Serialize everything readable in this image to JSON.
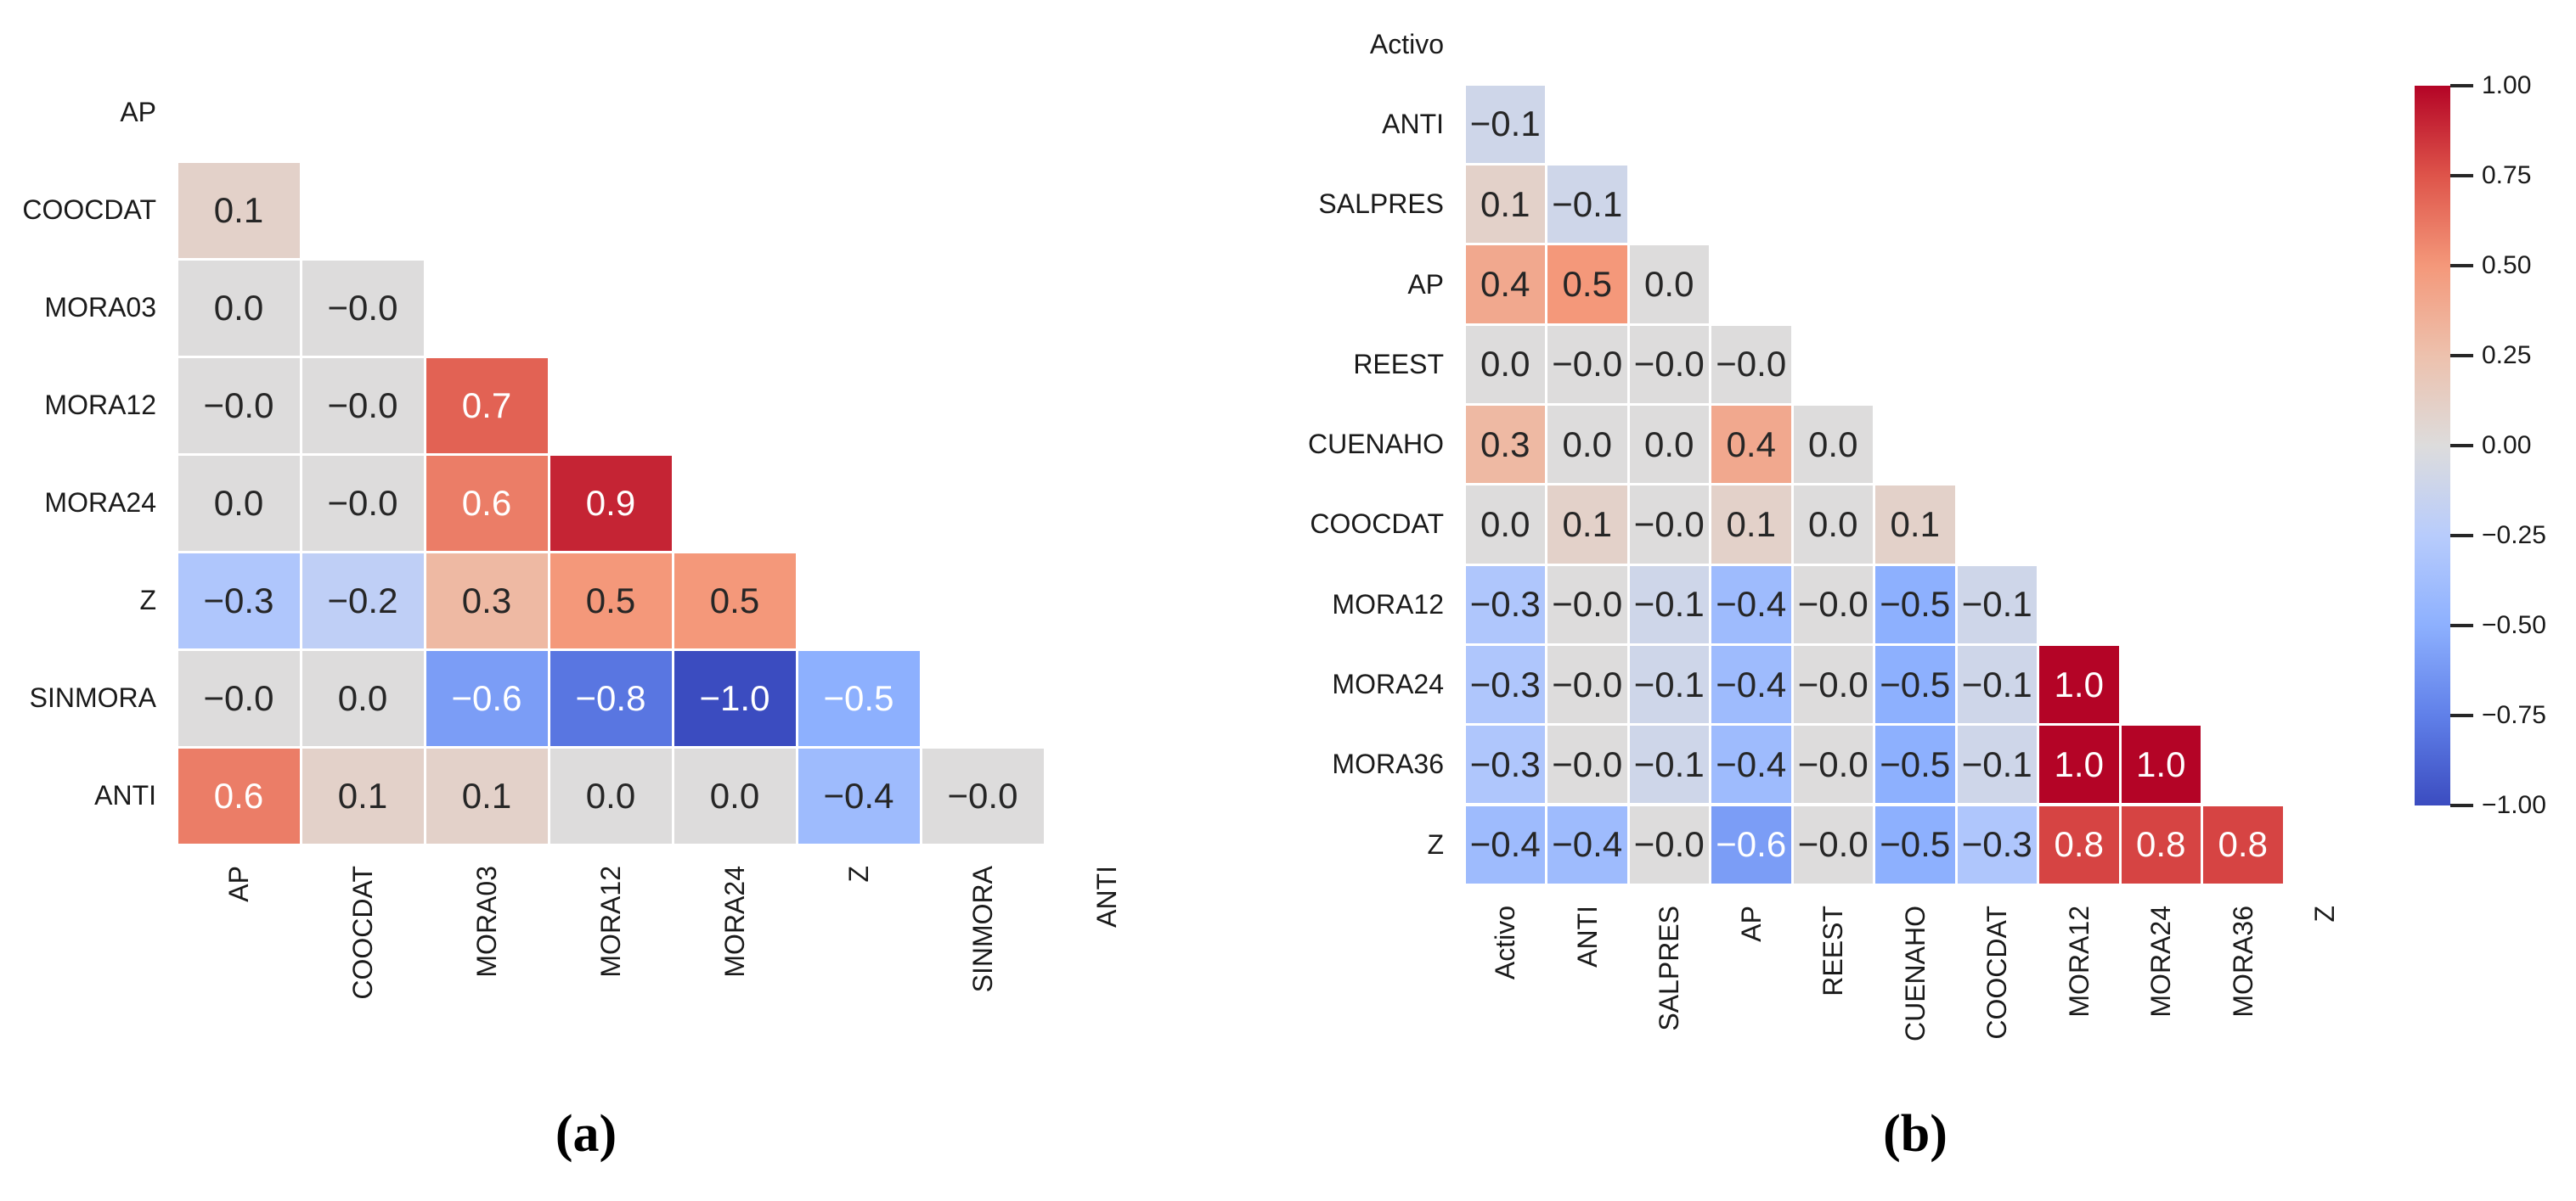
{
  "figure": {
    "background": "#ffffff"
  },
  "colormap": {
    "name": "coolwarm",
    "domain": [
      -1,
      1
    ],
    "stops": [
      "#3b4cc0",
      "#6080e9",
      "#8db0fe",
      "#b8ccfc",
      "#dddcdc",
      "#edc1ad",
      "#f4987a",
      "#de544a",
      "#b40426"
    ]
  },
  "chart_data": [
    {
      "type": "heatmap",
      "caption": "(a)",
      "mask": "upper-triangle-and-diagonal",
      "vmin": -1,
      "vmax": 1,
      "labels": [
        "AP",
        "COOCDAT",
        "MORA03",
        "MORA12",
        "MORA24",
        "Z",
        "SINMORA",
        "ANTI"
      ],
      "cells": [
        [],
        [
          "0.1"
        ],
        [
          "0.0",
          "−0.0"
        ],
        [
          "−0.0",
          "−0.0",
          "0.7"
        ],
        [
          "0.0",
          "−0.0",
          "0.6",
          "0.9"
        ],
        [
          "−0.3",
          "−0.2",
          "0.3",
          "0.5",
          "0.5"
        ],
        [
          "−0.0",
          "0.0",
          "−0.6",
          "−0.8",
          "−1.0",
          "−0.5"
        ],
        [
          "0.6",
          "0.1",
          "0.1",
          "0.0",
          "0.0",
          "−0.4",
          "−0.0"
        ]
      ],
      "white_text_pos": 0.6,
      "white_text_neg": -0.5
    },
    {
      "type": "heatmap",
      "caption": "(b)",
      "mask": "upper-triangle-and-diagonal",
      "vmin": -1,
      "vmax": 1,
      "labels": [
        "Activo",
        "ANTI",
        "SALPRES",
        "AP",
        "REEST",
        "CUENAHO",
        "COOCDAT",
        "MORA12",
        "MORA24",
        "MORA36",
        "Z"
      ],
      "cells": [
        [],
        [
          "−0.1"
        ],
        [
          "0.1",
          "−0.1"
        ],
        [
          "0.4",
          "0.5",
          "0.0"
        ],
        [
          "0.0",
          "−0.0",
          "−0.0",
          "−0.0"
        ],
        [
          "0.3",
          "0.0",
          "0.0",
          "0.4",
          "0.0"
        ],
        [
          "0.0",
          "0.1",
          "−0.0",
          "0.1",
          "0.0",
          "0.1"
        ],
        [
          "−0.3",
          "−0.0",
          "−0.1",
          "−0.4",
          "−0.0",
          "−0.5",
          "−0.1"
        ],
        [
          "−0.3",
          "−0.0",
          "−0.1",
          "−0.4",
          "−0.0",
          "−0.5",
          "−0.1",
          "1.0"
        ],
        [
          "−0.3",
          "−0.0",
          "−0.1",
          "−0.4",
          "−0.0",
          "−0.5",
          "−0.1",
          "1.0",
          "1.0"
        ],
        [
          "−0.4",
          "−0.4",
          "−0.0",
          "−0.6",
          "−0.0",
          "−0.5",
          "−0.3",
          "0.8",
          "0.8",
          "0.8"
        ]
      ],
      "white_text_pos": 0.8,
      "white_text_neg": -0.6
    }
  ],
  "colorbar": {
    "max_label": "1.00",
    "min_label": "−1.00",
    "tick_labels": [
      "1.00",
      "0.75",
      "0.50",
      "0.25",
      "0.00",
      "−0.25",
      "−0.50",
      "−0.75",
      "−1.00"
    ]
  }
}
